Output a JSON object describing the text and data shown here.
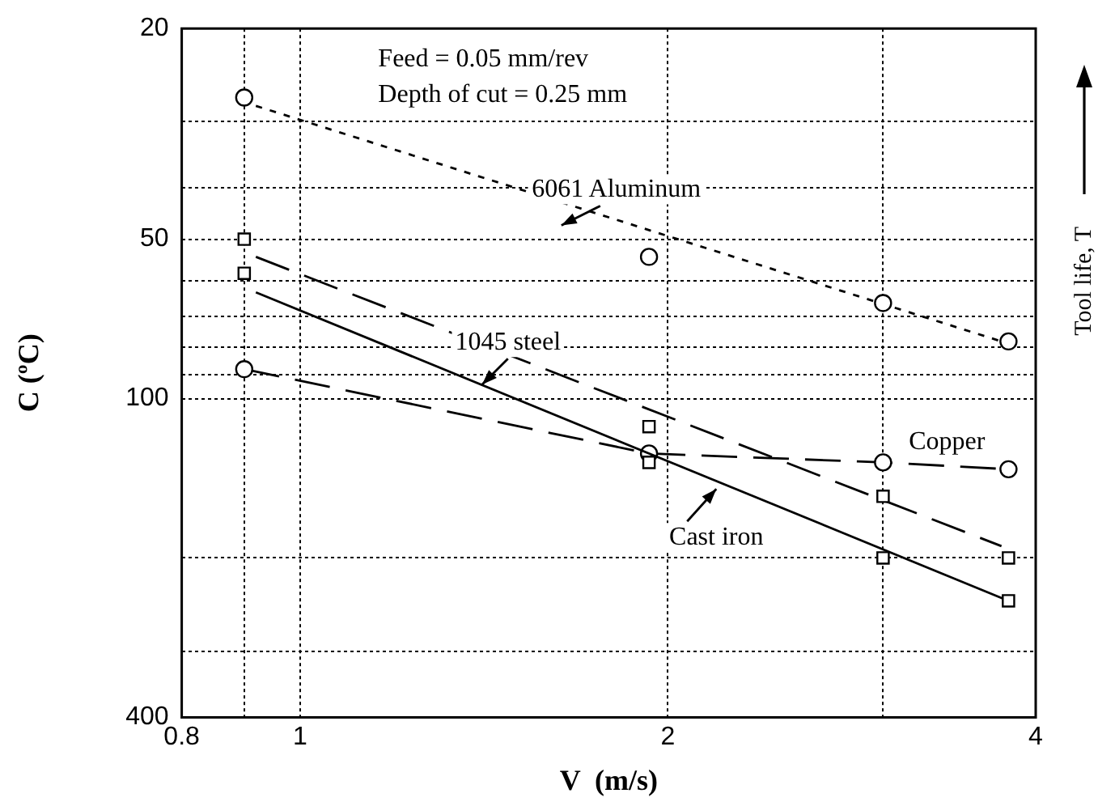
{
  "chart_data": {
    "type": "scatter",
    "xlabel": "V  (m/s)",
    "ylabel": "C (ºC)",
    "annotations": [
      "Feed = 0.05 mm/rev",
      "Depth of cut = 0.25 mm",
      "6061 Aluminum",
      "1045 steel",
      "Copper",
      "Cast iron",
      "Tool life, T"
    ],
    "series": [
      {
        "marker": "circle",
        "color": "#000000",
        "x": [
          0.9,
          1.93,
          3.0,
          3.8
        ],
        "values": [
          27,
          54,
          66,
          78
        ]
      },
      {
        "type": "line",
        "marker": "none",
        "line_style": "dotted",
        "color": "#000000",
        "x": [
          0.92,
          3.75
        ],
        "values": [
          28,
          78
        ]
      },
      {
        "marker": "square",
        "color": "#000000",
        "x": [
          0.9,
          1.93,
          3.0,
          3.8
        ],
        "values": [
          50,
          113,
          153,
          200
        ]
      },
      {
        "type": "line",
        "marker": "none",
        "line_style": "dashed",
        "color": "#000000",
        "x": [
          0.92,
          3.75
        ],
        "values": [
          54,
          190
        ]
      },
      {
        "marker": "square",
        "color": "#000000",
        "x": [
          0.9,
          1.93,
          3.0,
          3.8
        ],
        "values": [
          58,
          132,
          200,
          241
        ]
      },
      {
        "type": "line",
        "marker": "none",
        "line_style": "solid",
        "color": "#000000",
        "x": [
          0.92,
          3.8
        ],
        "values": [
          63,
          241
        ]
      },
      {
        "type": "line",
        "marker": "circle",
        "line_style": "dashed",
        "color": "#000000",
        "x": [
          0.9,
          1.93,
          3.0,
          3.8
        ],
        "values": [
          88,
          127,
          132,
          136
        ]
      }
    ],
    "log": "xy",
    "xlim": [
      0.8,
      4
    ],
    "xticks": [
      0.8,
      {
        "value": 0.9,
        "label": null
      },
      1,
      2,
      {
        "value": 3,
        "label": null
      },
      4
    ],
    "ylim": [
      400,
      20
    ],
    "yticks": [
      20,
      {
        "value": 30,
        "label": null
      },
      {
        "value": 40,
        "label": null
      },
      50,
      {
        "value": 60,
        "label": null
      },
      {
        "value": 70,
        "label": null
      },
      {
        "value": 80,
        "label": null
      },
      {
        "value": 90,
        "label": null
      },
      100,
      {
        "value": 200,
        "label": null
      },
      {
        "value": 300,
        "label": null
      },
      400
    ],
    "grid": true,
    "legend": false
  }
}
